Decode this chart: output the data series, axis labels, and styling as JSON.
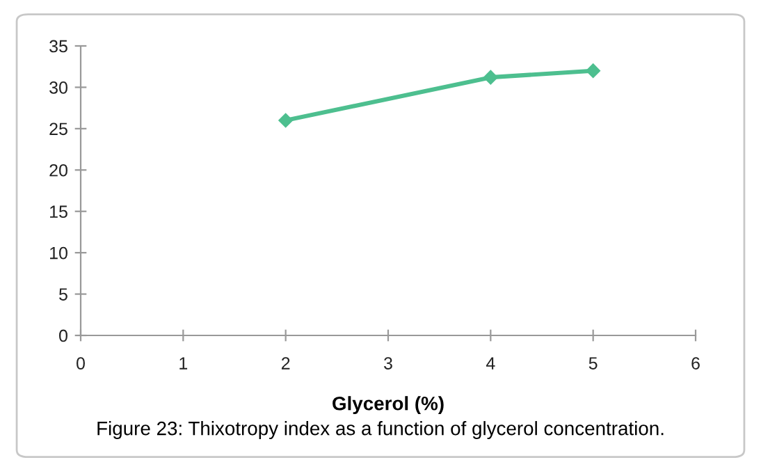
{
  "chart_data": {
    "type": "line",
    "xlabel": "Glycerol (%)",
    "x": [
      2,
      4,
      5
    ],
    "series": [
      {
        "color": "#4dbf8f",
        "values": [
          26,
          31.2,
          32
        ]
      }
    ],
    "xlim": [
      0,
      6
    ],
    "xticks": [
      0,
      1,
      2,
      3,
      4,
      5,
      6
    ],
    "ylim": [
      0,
      35
    ],
    "yticks": [
      0,
      5,
      10,
      15,
      20,
      25,
      30,
      35
    ],
    "marker": "diamond",
    "line_style": "solid",
    "grid": false,
    "annotations": [
      "Figure 23: Thixotropy index as a function of glycerol concentration."
    ]
  }
}
